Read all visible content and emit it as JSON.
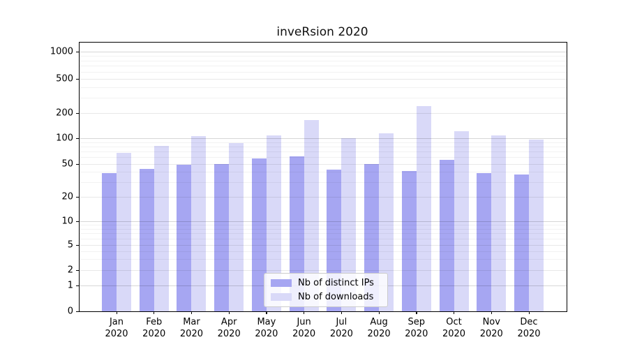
{
  "title": "inveRsion 2020",
  "chart_data": {
    "type": "bar",
    "title": "inveRsion 2020",
    "categories": [
      "Jan 2020",
      "Feb 2020",
      "Mar 2020",
      "Apr 2020",
      "May 2020",
      "Jun 2020",
      "Jul 2020",
      "Aug 2020",
      "Sep 2020",
      "Oct 2020",
      "Nov 2020",
      "Dec 2020"
    ],
    "x_tick_months": [
      "Jan",
      "Feb",
      "Mar",
      "Apr",
      "May",
      "Jun",
      "Jul",
      "Aug",
      "Sep",
      "Oct",
      "Nov",
      "Dec"
    ],
    "x_tick_year": "2020",
    "series": [
      {
        "name": "Nb of distinct IPs",
        "color": "#a6a6f2",
        "values": [
          39,
          44,
          49,
          50,
          58,
          62,
          43,
          50,
          41,
          56,
          39,
          37
        ]
      },
      {
        "name": "Nb of downloads",
        "color": "#d9d9f8",
        "values": [
          68,
          82,
          107,
          88,
          108,
          165,
          100,
          115,
          240,
          122,
          108,
          97
        ]
      }
    ],
    "ylabel": "",
    "xlabel": "",
    "y_scale": "symlog",
    "y_ticks": [
      0,
      1,
      2,
      5,
      10,
      20,
      50,
      100,
      200,
      500,
      1000
    ],
    "ylim": [
      0,
      1300
    ],
    "grid": true,
    "legend_position": "lower center"
  }
}
